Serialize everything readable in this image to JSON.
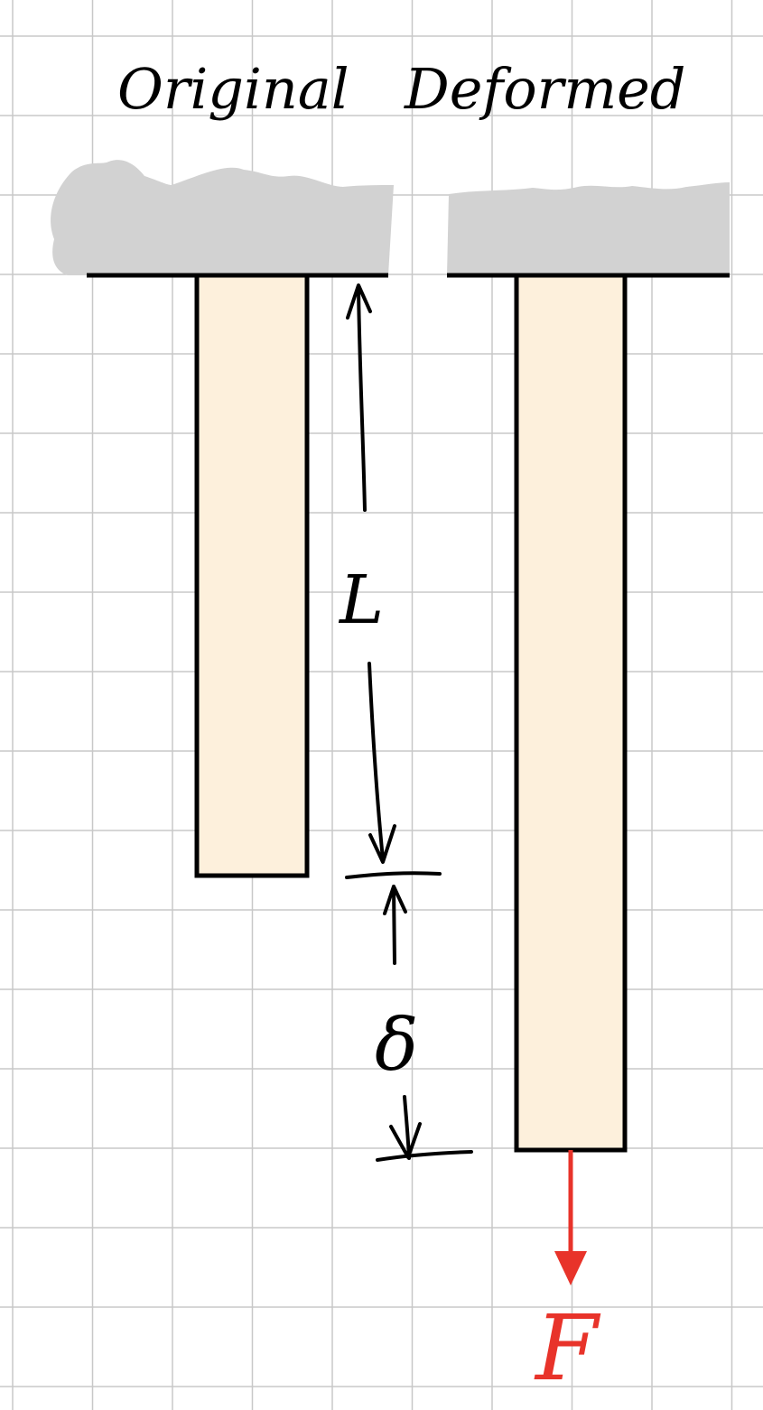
{
  "labels": {
    "original": "Original",
    "deformed": "Deformed",
    "length": "L",
    "elongation": "δ",
    "force": "F"
  },
  "colors": {
    "grid": "#c8c8c8",
    "ground": "#d2d2d2",
    "bar_fill": "#fdf0dc",
    "ink": "#000000",
    "force": "#e8332a"
  }
}
